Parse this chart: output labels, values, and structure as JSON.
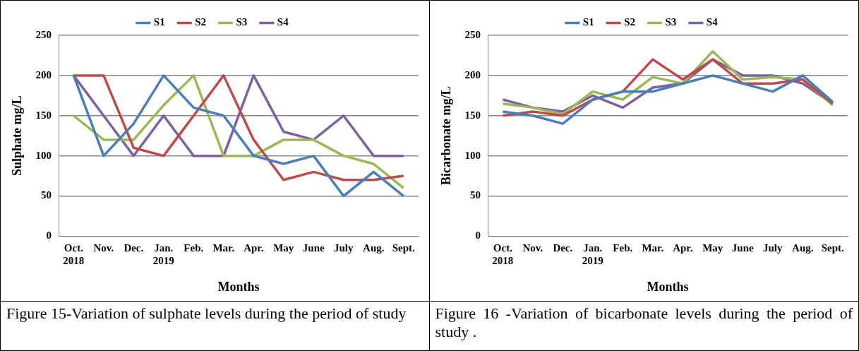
{
  "chart_data": [
    {
      "type": "line",
      "ylabel": "Sulphate mg/L",
      "xlabel": "Months",
      "categories": [
        "Oct.\n2018",
        "Nov.",
        "Dec.",
        "Jan.\n2019",
        "Feb.",
        "Mar.",
        "Apr.",
        "May",
        "June",
        "July",
        "Aug.",
        "Sept."
      ],
      "ylim": [
        0,
        250
      ],
      "yticks": [
        0,
        50,
        100,
        150,
        200,
        250
      ],
      "grid": "y",
      "legend": "top",
      "marker": "none",
      "annotations": [
        "Figure 15-Variation of sulphate levels  during the period of study"
      ],
      "series": [
        {
          "name": "S1",
          "color": "#4a7ebb",
          "values": [
            200,
            100,
            140,
            200,
            160,
            150,
            100,
            90,
            100,
            50,
            80,
            50
          ]
        },
        {
          "name": "S2",
          "color": "#be4b48",
          "values": [
            200,
            200,
            110,
            100,
            150,
            200,
            120,
            70,
            80,
            70,
            70,
            75
          ]
        },
        {
          "name": "S3",
          "color": "#98b954",
          "values": [
            150,
            120,
            120,
            163,
            200,
            100,
            100,
            120,
            120,
            100,
            90,
            60
          ]
        },
        {
          "name": "S4",
          "color": "#7d60a0",
          "values": [
            200,
            150,
            100,
            150,
            100,
            100,
            200,
            130,
            120,
            150,
            100,
            100
          ]
        }
      ]
    },
    {
      "type": "line",
      "ylabel": "Bicarbonate mg/L",
      "xlabel": "Months",
      "categories": [
        "Oct.\n2018",
        "Nov.",
        "Dec.",
        "Jan.\n2019",
        "Feb.",
        "Mar.",
        "Apr.",
        "May",
        "June",
        "July",
        "Aug.",
        "Sept."
      ],
      "ylim": [
        0,
        250
      ],
      "yticks": [
        0,
        50,
        100,
        150,
        200,
        250
      ],
      "grid": "y",
      "legend": "top",
      "marker": "none",
      "annotations": [
        "Figure 16 -Variation of bicarbonate levels during the period of study ."
      ],
      "series": [
        {
          "name": "S1",
          "color": "#4a7ebb",
          "values": [
            155,
            150,
            140,
            170,
            180,
            180,
            190,
            200,
            190,
            180,
            200,
            167
          ]
        },
        {
          "name": "S2",
          "color": "#be4b48",
          "values": [
            150,
            155,
            150,
            170,
            180,
            220,
            195,
            220,
            190,
            190,
            195,
            165
          ]
        },
        {
          "name": "S3",
          "color": "#98b954",
          "values": [
            165,
            160,
            152,
            180,
            170,
            198,
            190,
            230,
            195,
            198,
            195,
            163
          ]
        },
        {
          "name": "S4",
          "color": "#7d60a0",
          "values": [
            170,
            160,
            155,
            175,
            160,
            185,
            190,
            220,
            200,
            200,
            190,
            165
          ]
        }
      ]
    }
  ]
}
